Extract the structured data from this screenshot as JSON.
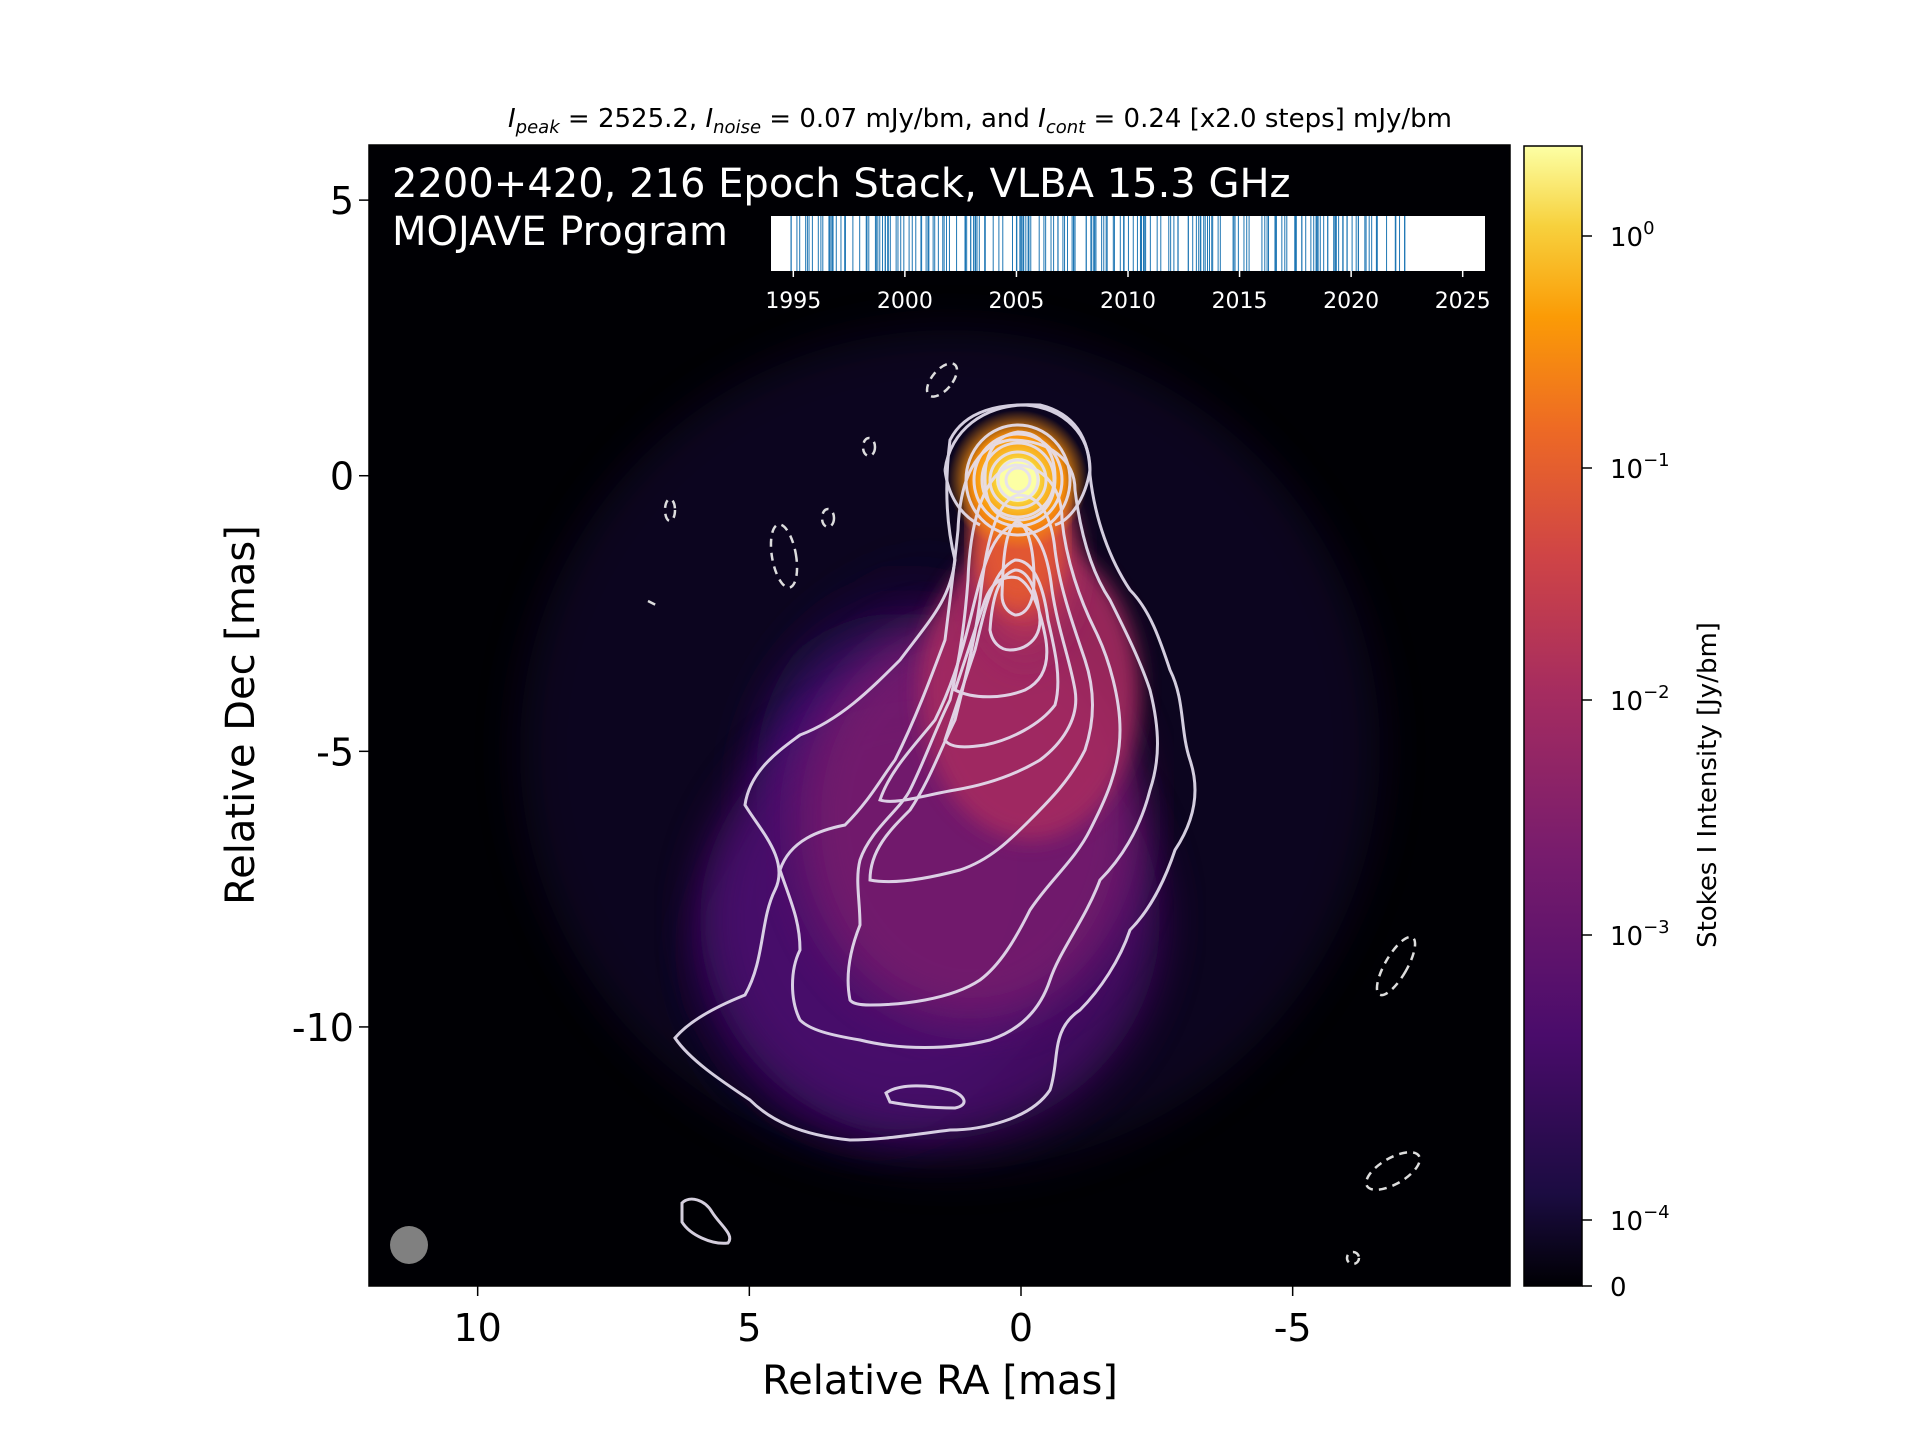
{
  "chart_data": {
    "type": "heatmap",
    "header": {
      "peak_sym": "I",
      "peak_sub": "peak",
      "peak_text": " = 2525.2, ",
      "noise_sym": "I",
      "noise_sub": "noise",
      "noise_text": " = 0.07 mJy/bm, and ",
      "cont_sym": "I",
      "cont_sub": "cont",
      "cont_text": " = 0.24 [x2.0 steps] mJy/bm"
    },
    "title_line1": "2200+420, 216 Epoch Stack, VLBA 15.3 GHz",
    "title_line2": "MOJAVE Program",
    "xlabel": "Relative RA [mas]",
    "ylabel": "Relative Dec [mas]",
    "x_ticks": [
      "10",
      "5",
      "0",
      "-5"
    ],
    "y_ticks": [
      "5",
      "0",
      "-5",
      "-10"
    ],
    "xlim": [
      12.0,
      -9.0
    ],
    "ylim": [
      -14.7,
      6.0
    ],
    "colorbar": {
      "label": "Stokes I Intensity [Jy/bm]",
      "scale": "log",
      "colormap": "inferno",
      "ticks": [
        {
          "base": "10",
          "exp": "0"
        },
        {
          "base": "10",
          "exp": "−1"
        },
        {
          "base": "10",
          "exp": "−2"
        },
        {
          "base": "10",
          "exp": "−3"
        },
        {
          "base": "10",
          "exp": "−4"
        },
        {
          "base": "0",
          "exp": ""
        }
      ]
    },
    "timeline": {
      "tick_years": [
        "1995",
        "2000",
        "2005",
        "2010",
        "2015",
        "2020",
        "2025"
      ],
      "range": [
        1994.0,
        2026.0
      ],
      "epoch_count": 216,
      "epoch_start": 1994.9,
      "epoch_end": 2022.4,
      "line_color": "#1f77b4"
    },
    "beam_color": "#808080",
    "contour_color": "#e6e0f0"
  }
}
